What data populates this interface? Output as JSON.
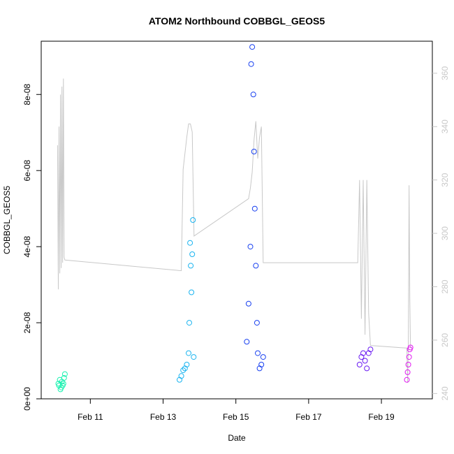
{
  "chart_data": {
    "type": "scatter",
    "title": "ATOM2 Northbound COBBGL_GEOS5",
    "xlabel": "Date",
    "ylabel": "COBBGL_GEOS5",
    "x_unit": "days",
    "xlim": [
      9.65,
      20.4
    ],
    "ylim": [
      0,
      9.4e-08
    ],
    "y2lim": [
      238,
      372
    ],
    "x_ticks": [
      {
        "value": 11,
        "label": "Feb 11"
      },
      {
        "value": 13,
        "label": "Feb 13"
      },
      {
        "value": 15,
        "label": "Feb 15"
      },
      {
        "value": 17,
        "label": "Feb 17"
      },
      {
        "value": 19,
        "label": "Feb 19"
      }
    ],
    "y_ticks": [
      {
        "value": 0,
        "label": "0e+00"
      },
      {
        "value": 2e-08,
        "label": "2e-08"
      },
      {
        "value": 4e-08,
        "label": "4e-08"
      },
      {
        "value": 6e-08,
        "label": "6e-08"
      },
      {
        "value": 8e-08,
        "label": "8e-08"
      }
    ],
    "y2_ticks": [
      {
        "value": 240,
        "label": "240"
      },
      {
        "value": 260,
        "label": "260"
      },
      {
        "value": 280,
        "label": "280"
      },
      {
        "value": 300,
        "label": "300"
      },
      {
        "value": 320,
        "label": "320"
      },
      {
        "value": 340,
        "label": "340"
      },
      {
        "value": 360,
        "label": "360"
      }
    ],
    "grid": false,
    "legend": "none",
    "series": [
      {
        "color": "#19f2b0",
        "x": [
          10.12,
          10.14,
          10.16,
          10.18,
          10.2,
          10.22,
          10.24,
          10.26,
          10.28,
          10.3
        ],
        "y": [
          4e-09,
          3.5e-09,
          5e-09,
          2.5e-09,
          3e-09,
          4.5e-09,
          3.5e-09,
          4e-09,
          5.5e-09,
          6.5e-09
        ]
      },
      {
        "color": "#1ab4f0",
        "x": [
          13.45,
          13.5,
          13.55,
          13.6,
          13.65,
          13.7,
          13.72,
          13.74,
          13.76,
          13.78,
          13.8,
          13.82,
          13.84
        ],
        "y": [
          5e-09,
          6e-09,
          7.5e-09,
          8e-09,
          9e-09,
          1.2e-08,
          2e-08,
          4.1e-08,
          3.5e-08,
          2.8e-08,
          3.8e-08,
          4.7e-08,
          1.1e-08
        ]
      },
      {
        "color": "#1840f0",
        "x": [
          15.3,
          15.35,
          15.4,
          15.42,
          15.45,
          15.48,
          15.5,
          15.52,
          15.55,
          15.58,
          15.6,
          15.65,
          15.7,
          15.75
        ],
        "y": [
          1.5e-08,
          2.5e-08,
          4e-08,
          8.8e-08,
          9.25e-08,
          8e-08,
          6.5e-08,
          5e-08,
          3.5e-08,
          2e-08,
          1.2e-08,
          8e-09,
          9e-09,
          1.1e-08
        ]
      },
      {
        "color": "#6a1af2",
        "x": [
          18.4,
          18.45,
          18.5,
          18.55,
          18.6,
          18.65,
          18.7
        ],
        "y": [
          9e-09,
          1.1e-08,
          1.2e-08,
          1e-08,
          8e-09,
          1.2e-08,
          1.3e-08
        ]
      },
      {
        "color": "#e11af2",
        "x": [
          19.7,
          19.72,
          19.74,
          19.76,
          19.78,
          19.8
        ],
        "y": [
          5e-09,
          7e-09,
          9e-09,
          1.1e-08,
          1.3e-08,
          1.35e-08
        ]
      }
    ],
    "y2_series": {
      "color": "#c8c8c8",
      "x": [
        10.1,
        10.12,
        10.14,
        10.16,
        10.18,
        10.2,
        10.22,
        10.24,
        10.26,
        10.28,
        10.3,
        13.5,
        13.55,
        13.6,
        13.65,
        13.7,
        13.75,
        13.8,
        13.85,
        15.35,
        15.4,
        15.45,
        15.5,
        15.55,
        15.6,
        15.65,
        15.7,
        15.75,
        18.35,
        18.4,
        18.45,
        18.5,
        18.55,
        18.6,
        18.65,
        18.7,
        19.7,
        19.72,
        19.74,
        19.76,
        19.78,
        19.8
      ],
      "y": [
        333,
        279,
        340,
        285,
        352,
        287,
        355,
        289,
        358,
        291,
        290,
        286,
        324,
        330,
        336,
        341,
        341,
        338,
        299,
        313,
        317,
        323,
        335,
        342,
        328,
        336,
        340,
        289,
        289,
        320,
        268,
        320,
        262,
        320,
        270,
        258,
        257,
        244,
        258,
        318,
        276,
        257
      ]
    }
  }
}
